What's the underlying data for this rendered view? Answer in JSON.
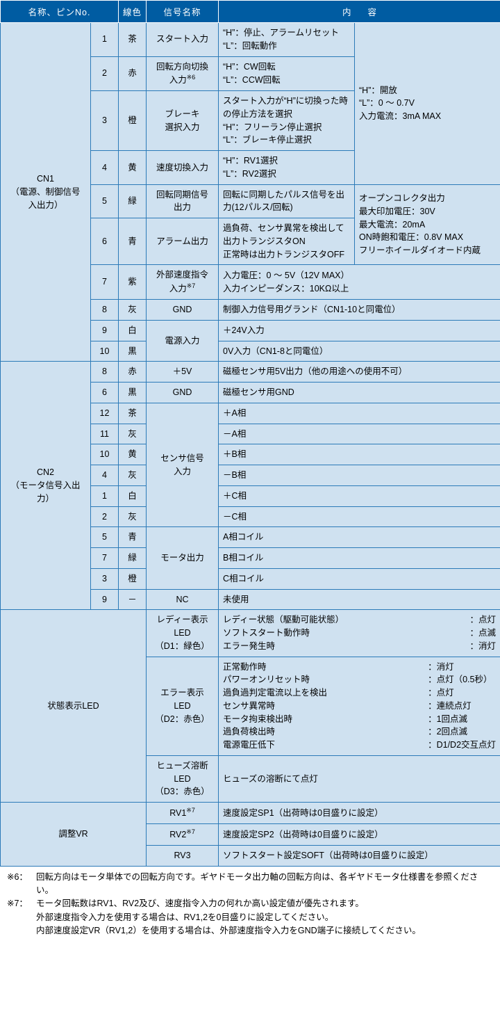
{
  "header": {
    "name_pin": "名称、ピンNo.",
    "wire_color": "線色",
    "signal_name": "信号名称",
    "content": "内容"
  },
  "col_widths": {
    "name": 130,
    "pin": 40,
    "color": 40,
    "signal": 104,
    "content1": 196,
    "content2": 210
  },
  "cn1": {
    "label": "CN1\n（電源、制御信号\n入出力）",
    "shared1": "“H”：開放\n“L”：0 ～ 0.7V\n入力電流：3mA MAX",
    "shared2": "オープンコレクタ出力\n最大印加電圧：30V\n最大電流：20mA\nON時飽和電圧：0.8V MAX\nフリーホイールダイオード内蔵",
    "rows": [
      {
        "pin": "1",
        "color": "茶",
        "signal": "スタート入力",
        "c1": "“H”：停止、アラームリセット\n“L”：回転動作"
      },
      {
        "pin": "2",
        "color": "赤",
        "signal": "回転方向切換\n入力",
        "sup": "※6",
        "c1": "“H”：CW回転\n“L”：CCW回転"
      },
      {
        "pin": "3",
        "color": "橙",
        "signal": "ブレーキ\n選択入力",
        "c1": "スタート入力が“H”に切換った時の停止方法を選択\n“H”：フリーラン停止選択\n“L”：ブレーキ停止選択"
      },
      {
        "pin": "4",
        "color": "黄",
        "signal": "速度切換入力",
        "c1": "“H”：RV1選択\n“L”：RV2選択"
      },
      {
        "pin": "5",
        "color": "緑",
        "signal": "回転同期信号\n出力",
        "c1": "回転に同期したパルス信号を出力(12パルス/回転)"
      },
      {
        "pin": "6",
        "color": "青",
        "signal": "アラーム出力",
        "c1": "過負荷、センサ異常を検出して出力トランジスタON\n正常時は出力トランジスタOFF"
      },
      {
        "pin": "7",
        "color": "紫",
        "signal": "外部速度指令\n入力",
        "sup": "※7",
        "c_full": "入力電圧：0 ～ 5V（12V MAX）\n入力インピーダンス：10KΩ以上"
      },
      {
        "pin": "8",
        "color": "灰",
        "signal": "GND",
        "c_full": "制御入力信号用グランド（CN1-10と同電位）"
      },
      {
        "pin": "9",
        "color": "白",
        "signal": "電源入力",
        "signal_rowspan": 2,
        "c_full": "＋24V入力"
      },
      {
        "pin": "10",
        "color": "黒",
        "c_full": "0V入力（CN1-8と同電位）"
      }
    ]
  },
  "cn2": {
    "label": "CN2\n（モータ信号入出力）",
    "rows": [
      {
        "pin": "8",
        "color": "赤",
        "signal": "＋5V",
        "c": "磁極センサ用5V出力（他の用途への使用不可）"
      },
      {
        "pin": "6",
        "color": "黒",
        "signal": "GND",
        "c": "磁極センサ用GND"
      },
      {
        "pin": "12",
        "color": "茶",
        "signal": "センサ信号\n入力",
        "signal_rowspan": 6,
        "c": "＋A相"
      },
      {
        "pin": "11",
        "color": "灰",
        "c": "－A相"
      },
      {
        "pin": "10",
        "color": "黄",
        "c": "＋B相"
      },
      {
        "pin": "4",
        "color": "灰",
        "c": "－B相"
      },
      {
        "pin": "1",
        "color": "白",
        "c": "＋C相"
      },
      {
        "pin": "2",
        "color": "灰",
        "c": "－C相"
      },
      {
        "pin": "5",
        "color": "青",
        "signal": "モータ出力",
        "signal_rowspan": 3,
        "c": "A相コイル"
      },
      {
        "pin": "7",
        "color": "緑",
        "c": "B相コイル"
      },
      {
        "pin": "3",
        "color": "橙",
        "c": "C相コイル"
      },
      {
        "pin": "9",
        "color": "－",
        "signal": "NC",
        "c": "未使用"
      }
    ]
  },
  "led": {
    "label": "状態表示LED",
    "rows": [
      {
        "signal": "レディー表示\nLED\n（D1：緑色）",
        "kv": [
          [
            "レディー状態（駆動可能状態）",
            "：点灯"
          ],
          [
            "ソフトスタート動作時",
            "：点滅"
          ],
          [
            "エラー発生時",
            "：消灯"
          ]
        ]
      },
      {
        "signal": "エラー表示\nLED\n（D2：赤色）",
        "kv": [
          [
            "正常動作時",
            "：消灯"
          ],
          [
            "パワーオンリセット時",
            "：点灯（0.5秒）"
          ],
          [
            "過負過判定電流以上を検出",
            "：点灯"
          ],
          [
            "センサ異常時",
            "：連続点灯"
          ],
          [
            "モータ拘束検出時",
            "：1回点滅"
          ],
          [
            "過負荷検出時",
            "：2回点滅"
          ],
          [
            "電源電圧低下",
            "：D1/D2交互点灯"
          ]
        ]
      },
      {
        "signal": "ヒューズ溶断\nLED\n（D3：赤色）",
        "c": "ヒューズの溶断にて点灯"
      }
    ]
  },
  "vr": {
    "label": "調整VR",
    "rows": [
      {
        "signal": "RV1",
        "sup": "※7",
        "c": "速度設定SP1（出荷時は0目盛りに設定）"
      },
      {
        "signal": "RV2",
        "sup": "※7",
        "c": "速度設定SP2（出荷時は0目盛りに設定）"
      },
      {
        "signal": "RV3",
        "c": "ソフトスタート設定SOFT（出荷時は0目盛りに設定）"
      }
    ]
  },
  "notes": [
    {
      "lbl": "※6：",
      "body": "回転方向はモータ単体での回転方向です。ギヤドモータ出力軸の回転方向は、各ギヤドモータ仕様書を参照ください。"
    },
    {
      "lbl": "※7：",
      "body": "モータ回転数はRV1、RV2及び、速度指令入力の何れか高い設定値が優先されます。\n外部速度指令入力を使用する場合は、RV1,2を0目盛りに設定してください。\n内部速度設定VR（RV1,2）を使用する場合は、外部速度指令入力をGND端子に接続してください。"
    }
  ]
}
